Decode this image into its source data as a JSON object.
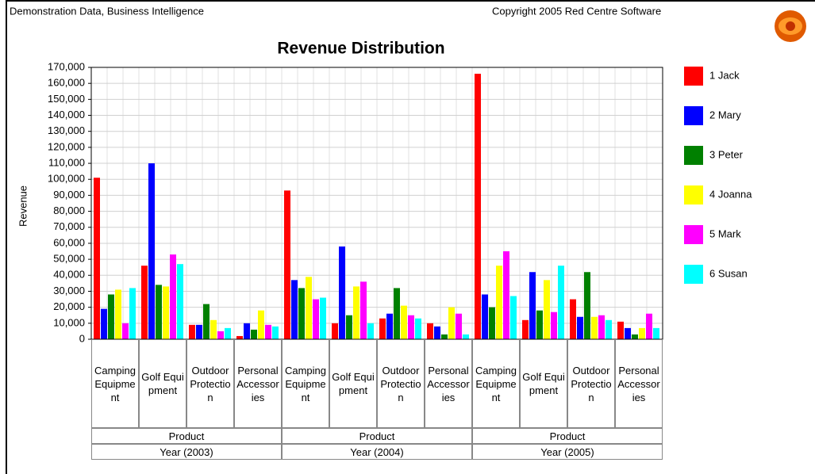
{
  "chart_data": {
    "type": "bar",
    "header_left": "Demonstration Data, Business Intelligence",
    "header_right": "Copyright 2005 Red Centre Software",
    "title": "Revenue Distribution",
    "y_label": "Revenue",
    "categories": [
      "Camping Equipment",
      "Golf Equipment",
      "Outdoor Protection",
      "Personal Accessories",
      "Camping Equipment",
      "Golf Equipment",
      "Outdoor Protection",
      "Personal Accessories",
      "Camping Equipment",
      "Golf Equipment",
      "Outdoor Protection",
      "Personal Accessories"
    ],
    "category_level_label": "Product",
    "groups": [
      "Year (2003)",
      "Year (2004)",
      "Year (2005)"
    ],
    "series": [
      {
        "name": "1 Jack",
        "color": "#ff0000",
        "values": [
          101000,
          46000,
          9000,
          2000,
          93000,
          10000,
          13000,
          10000,
          166000,
          12000,
          25000,
          11000
        ]
      },
      {
        "name": "2 Mary",
        "color": "#0000ff",
        "values": [
          19000,
          110000,
          9000,
          10000,
          37000,
          58000,
          16000,
          8000,
          28000,
          42000,
          14000,
          7000
        ]
      },
      {
        "name": "3 Peter",
        "color": "#008000",
        "values": [
          28000,
          34000,
          22000,
          6000,
          32000,
          15000,
          32000,
          3000,
          20000,
          18000,
          42000,
          3000
        ]
      },
      {
        "name": "4 Joanna",
        "color": "#ffff00",
        "values": [
          31000,
          33000,
          12000,
          18000,
          39000,
          33000,
          21000,
          20000,
          46000,
          37000,
          14000,
          7000
        ]
      },
      {
        "name": "5 Mark",
        "color": "#ff00ff",
        "values": [
          10000,
          53000,
          5000,
          9000,
          25000,
          36000,
          15000,
          16000,
          55000,
          17000,
          15000,
          16000
        ]
      },
      {
        "name": "6 Susan",
        "color": "#00ffff",
        "values": [
          32000,
          47000,
          7000,
          8000,
          26000,
          10000,
          13000,
          3000,
          27000,
          46000,
          12000,
          7000
        ]
      }
    ],
    "ylim": [
      0,
      170000
    ],
    "yticks": [
      0,
      {
        "value": 10000,
        "label": "10,000"
      },
      {
        "value": 20000,
        "label": "20,000"
      },
      {
        "value": 30000,
        "label": "30,000"
      },
      {
        "value": 40000,
        "label": "40,000"
      },
      {
        "value": 50000,
        "label": "50,000"
      },
      {
        "value": 60000,
        "label": "60,000"
      },
      {
        "value": 70000,
        "label": "70,000"
      },
      {
        "value": 80000,
        "label": "80,000"
      },
      {
        "value": 90000,
        "label": "90,000"
      },
      {
        "value": 100000,
        "label": "100,000"
      },
      {
        "value": 110000,
        "label": "110,000"
      },
      {
        "value": 120000,
        "label": "120,000"
      },
      {
        "value": 130000,
        "label": "130,000"
      },
      {
        "value": 140000,
        "label": "140,000"
      },
      {
        "value": 150000,
        "label": "150,000"
      },
      {
        "value": 160000,
        "label": "160,000"
      },
      {
        "value": 170000,
        "label": "170,000"
      }
    ],
    "grid": true,
    "legend": "right"
  }
}
